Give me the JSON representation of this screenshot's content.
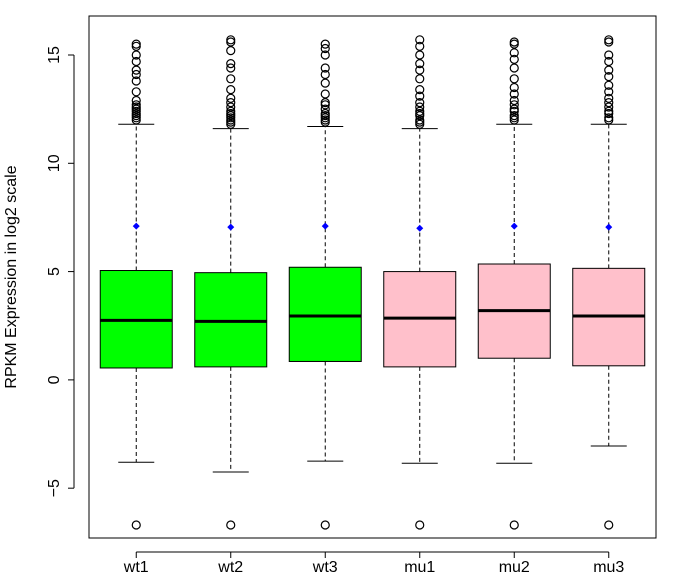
{
  "chart_data": {
    "type": "boxplot",
    "title": "",
    "xlabel": "",
    "ylabel": "RPKM Expression in log2 scale",
    "ylim": [
      -7.3,
      16.8
    ],
    "yticks": [
      {
        "value": -5,
        "label": "−5"
      },
      {
        "value": 0,
        "label": "0"
      },
      {
        "value": 5,
        "label": "5"
      },
      {
        "value": 10,
        "label": "10"
      },
      {
        "value": 15,
        "label": "15"
      }
    ],
    "grid": false,
    "legend": "none",
    "mean_marker_color": "#0000ff",
    "boxes": [
      {
        "label": "wt1",
        "color": "#00ff00",
        "q1": 0.55,
        "median": 2.75,
        "q3": 5.05,
        "whisker_low": -3.8,
        "whisker_high": 11.8,
        "mean": 7.1,
        "outliers": [
          -6.7,
          12.0,
          12.1,
          12.2,
          12.3,
          12.4,
          12.5,
          12.6,
          12.7,
          12.9,
          13.3,
          13.8,
          14.1,
          14.3,
          14.7,
          15.0,
          15.4,
          15.5
        ]
      },
      {
        "label": "wt2",
        "color": "#00ff00",
        "q1": 0.6,
        "median": 2.7,
        "q3": 4.95,
        "whisker_low": -4.25,
        "whisker_high": 11.6,
        "mean": 7.05,
        "outliers": [
          -6.7,
          11.8,
          11.9,
          12.0,
          12.1,
          12.2,
          12.3,
          12.4,
          12.6,
          12.8,
          13.0,
          13.4,
          13.9,
          14.4,
          14.6,
          15.2,
          15.6,
          15.7
        ]
      },
      {
        "label": "wt3",
        "color": "#00ff00",
        "q1": 0.85,
        "median": 2.95,
        "q3": 5.2,
        "whisker_low": -3.75,
        "whisker_high": 11.7,
        "mean": 7.1,
        "outliers": [
          -6.7,
          11.9,
          12.0,
          12.1,
          12.2,
          12.3,
          12.5,
          12.7,
          12.8,
          13.2,
          13.7,
          14.1,
          14.4,
          15.0,
          15.3,
          15.5
        ]
      },
      {
        "label": "mu1",
        "color": "#ffc0cb",
        "q1": 0.6,
        "median": 2.85,
        "q3": 5.0,
        "whisker_low": -3.85,
        "whisker_high": 11.6,
        "mean": 7.0,
        "outliers": [
          -6.7,
          11.8,
          11.9,
          12.0,
          12.2,
          12.3,
          12.4,
          12.6,
          12.8,
          13.1,
          13.4,
          13.9,
          14.3,
          14.6,
          15.0,
          15.4,
          15.7
        ]
      },
      {
        "label": "mu2",
        "color": "#ffc0cb",
        "q1": 1.0,
        "median": 3.2,
        "q3": 5.35,
        "whisker_low": -3.85,
        "whisker_high": 11.8,
        "mean": 7.1,
        "outliers": [
          -6.7,
          12.0,
          12.1,
          12.2,
          12.4,
          12.5,
          12.7,
          12.9,
          13.2,
          13.5,
          13.9,
          14.4,
          14.8,
          15.1,
          15.5,
          15.6
        ]
      },
      {
        "label": "mu3",
        "color": "#ffc0cb",
        "q1": 0.65,
        "median": 2.95,
        "q3": 5.15,
        "whisker_low": -3.05,
        "whisker_high": 11.8,
        "mean": 7.05,
        "outliers": [
          -6.7,
          12.0,
          12.1,
          12.3,
          12.4,
          12.6,
          12.8,
          13.0,
          13.3,
          13.6,
          14.0,
          14.3,
          14.7,
          15.0,
          15.6,
          15.7
        ]
      }
    ]
  }
}
